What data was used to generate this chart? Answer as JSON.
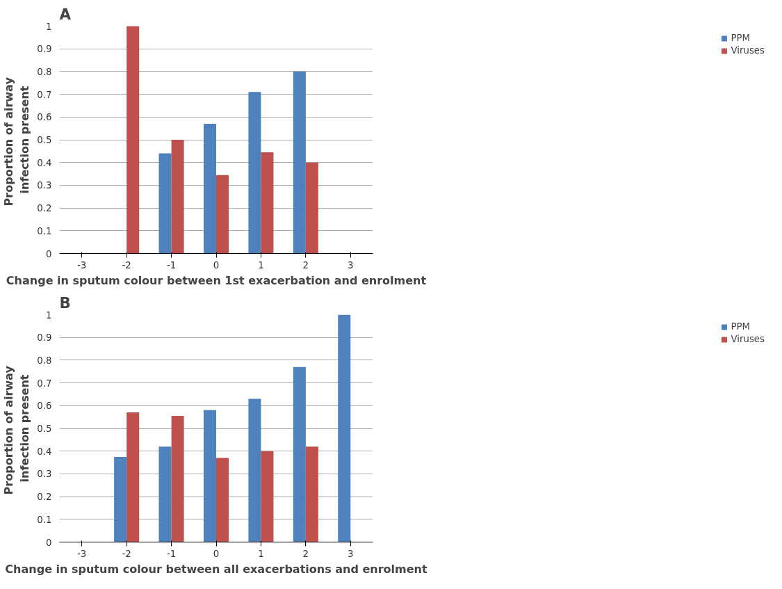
{
  "chart_data": [
    {
      "type": "bar",
      "title": "A",
      "xlabel": "Change in sputum colour between 1st exacerbation and enrolment",
      "ylabel": "Proportion  of airway\ninfection present",
      "categories": [
        "-3",
        "-2",
        "-1",
        "0",
        "1",
        "2",
        "3"
      ],
      "series": [
        {
          "name": "PPM",
          "color": "#4f81bd",
          "values": [
            null,
            null,
            0.44,
            0.57,
            0.71,
            0.8,
            null
          ]
        },
        {
          "name": "Viruses",
          "color": "#c0504d",
          "values": [
            null,
            1.0,
            0.5,
            0.345,
            0.445,
            0.4,
            null
          ]
        }
      ],
      "ylim": [
        0,
        1
      ],
      "yticks": [
        0,
        0.1,
        0.2,
        0.3,
        0.4,
        0.5,
        0.6,
        0.7,
        0.8,
        0.9,
        1
      ],
      "grid": "y",
      "legend": "right"
    },
    {
      "type": "bar",
      "title": "B",
      "xlabel": "Change in sputum colour between all exacerbations and enrolment",
      "ylabel": "Proportion  of airway\ninfection present",
      "categories": [
        "-3",
        "-2",
        "-1",
        "0",
        "1",
        "2",
        "3"
      ],
      "series": [
        {
          "name": "PPM",
          "color": "#4f81bd",
          "values": [
            null,
            0.375,
            0.42,
            0.58,
            0.63,
            0.77,
            1.0
          ]
        },
        {
          "name": "Viruses",
          "color": "#c0504d",
          "values": [
            null,
            0.57,
            0.555,
            0.37,
            0.4,
            0.42,
            null
          ]
        }
      ],
      "ylim": [
        0,
        1
      ],
      "yticks": [
        0,
        0.1,
        0.2,
        0.3,
        0.4,
        0.5,
        0.6,
        0.7,
        0.8,
        0.9,
        1
      ],
      "grid": "y",
      "legend": "right"
    }
  ]
}
